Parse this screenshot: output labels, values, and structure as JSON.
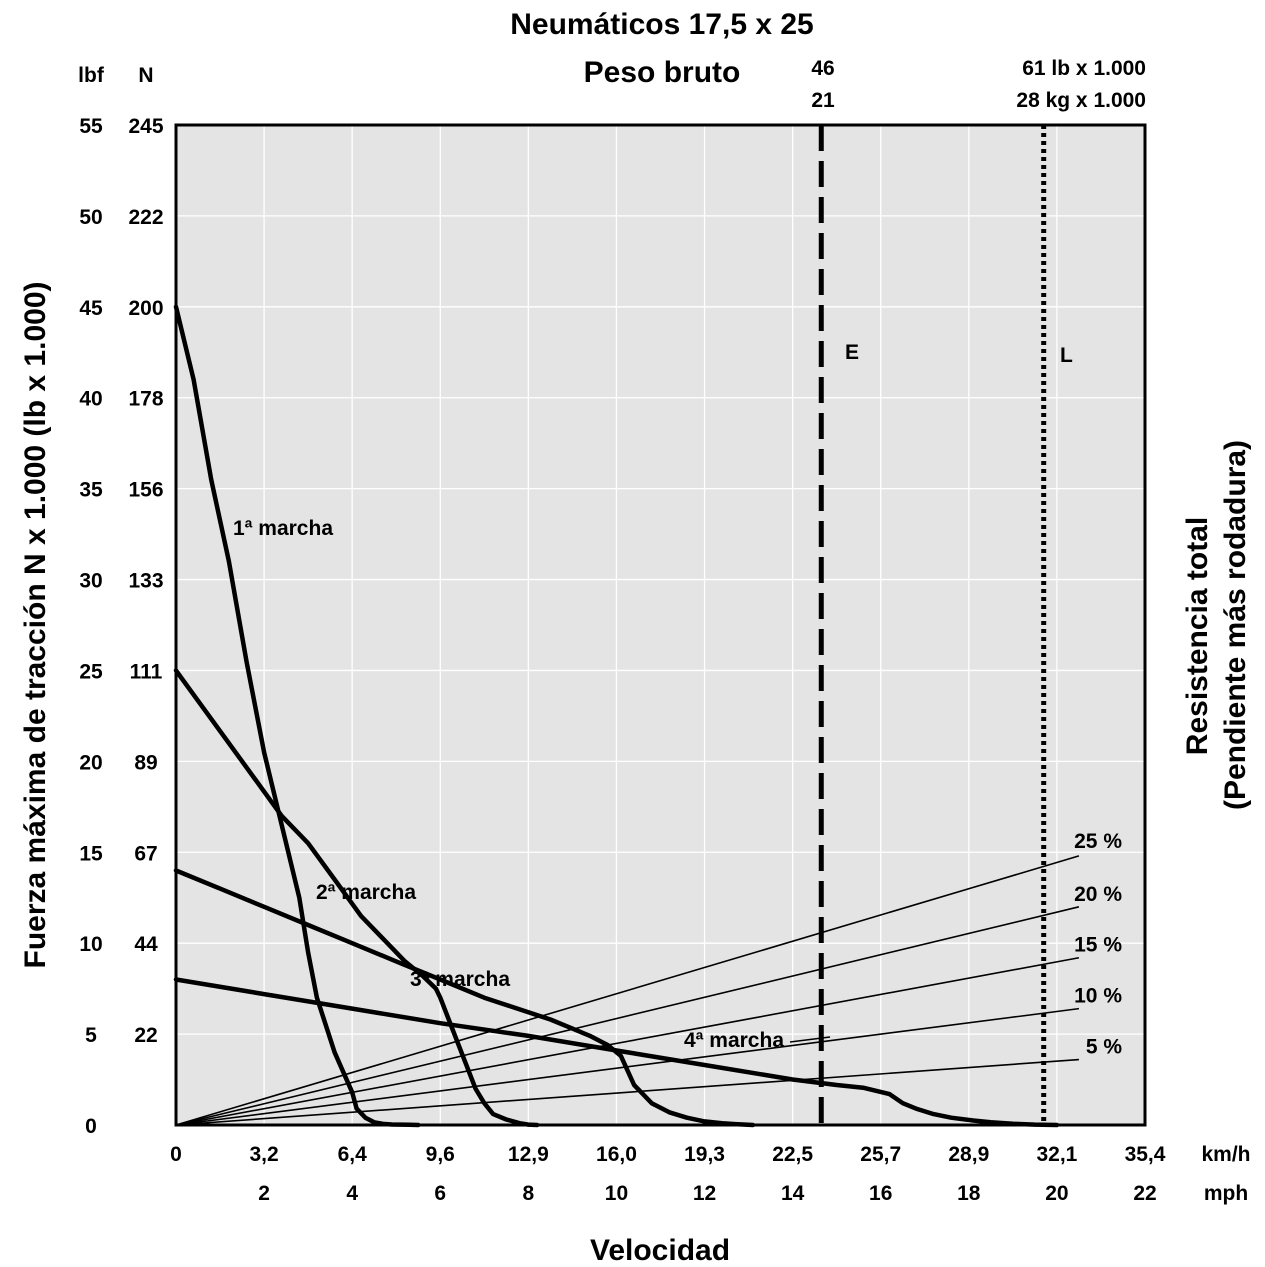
{
  "chart_data": {
    "type": "line",
    "title": "Neumáticos 17,5 x 25",
    "subtitle": "Peso bruto",
    "xlabel": "Velocidad",
    "ylabel_left": "Fuerza máxima de tracción  N x 1.000 (lb x 1.000)",
    "ylabel_right_1": "Resistencia total",
    "ylabel_right_2": "(Pendiente más rodadura)",
    "left_units": {
      "lbf": "lbf",
      "n": "N"
    },
    "x_units": {
      "kmh": "km/h",
      "mph": "mph"
    },
    "xlim_mph": [
      0,
      22
    ],
    "ylim_lbf": [
      0,
      55
    ],
    "grid": true,
    "x_ticks_kmh": [
      "0",
      "3,2",
      "6,4",
      "9,6",
      "12,9",
      "16,0",
      "19,3",
      "22,5",
      "25,7",
      "28,9",
      "32,1",
      "35,4"
    ],
    "x_ticks_mph": [
      "2",
      "4",
      "6",
      "8",
      "10",
      "12",
      "14",
      "16",
      "18",
      "20",
      "22"
    ],
    "y_ticks": [
      {
        "lbf": "0",
        "n": ""
      },
      {
        "lbf": "5",
        "n": "22"
      },
      {
        "lbf": "10",
        "n": "44"
      },
      {
        "lbf": "15",
        "n": "67"
      },
      {
        "lbf": "20",
        "n": "89"
      },
      {
        "lbf": "25",
        "n": "111"
      },
      {
        "lbf": "30",
        "n": "133"
      },
      {
        "lbf": "35",
        "n": "156"
      },
      {
        "lbf": "40",
        "n": "178"
      },
      {
        "lbf": "45",
        "n": "200"
      },
      {
        "lbf": "50",
        "n": "222"
      },
      {
        "lbf": "55",
        "n": "245"
      }
    ],
    "series": [
      {
        "name": "1ª marcha",
        "x": [
          0,
          0.4,
          0.8,
          1.2,
          1.6,
          2.0,
          2.4,
          2.8,
          3.0,
          3.2,
          3.6,
          4.0,
          4.1,
          4.3,
          4.5,
          4.7,
          4.9,
          5.3,
          5.5
        ],
        "y": [
          45,
          41,
          35.5,
          31,
          25.5,
          20.5,
          16.5,
          12.5,
          9.5,
          7,
          4,
          1.8,
          0.9,
          0.4,
          0.15,
          0.06,
          0.03,
          0.01,
          0
        ]
      },
      {
        "name": "2ª marcha",
        "x": [
          0,
          0.6,
          1.2,
          1.8,
          2.4,
          3.0,
          3.6,
          4.2,
          4.8,
          5.2,
          5.6,
          5.9,
          6.0,
          6.4,
          6.8,
          7.0,
          7.2,
          7.5,
          7.8,
          8.0,
          8.2
        ],
        "y": [
          25,
          23,
          21,
          19,
          17,
          15.5,
          13.5,
          11.5,
          10,
          9,
          8.2,
          7.5,
          7,
          4.5,
          2,
          1.2,
          0.6,
          0.3,
          0.1,
          0.02,
          0
        ]
      },
      {
        "name": "3ª marcha",
        "x": [
          0,
          1,
          2,
          3,
          4,
          5,
          6,
          7,
          8,
          8.5,
          9.0,
          9.4,
          9.8,
          10.1,
          10.4,
          10.8,
          11.2,
          11.6,
          12.0,
          12.4,
          12.7,
          13.1
        ],
        "y": [
          14,
          13,
          12,
          11,
          10,
          9,
          8,
          7,
          6.2,
          5.8,
          5.3,
          4.9,
          4.4,
          3.8,
          2.2,
          1.2,
          0.7,
          0.4,
          0.2,
          0.1,
          0.05,
          0
        ]
      },
      {
        "name": "4ª marcha",
        "x": [
          0,
          2,
          4,
          6,
          8,
          10,
          12,
          14,
          15,
          15.6,
          16.2,
          16.5,
          16.8,
          17.2,
          17.6,
          18.1,
          18.5,
          19.0,
          19.5,
          20.0
        ],
        "y": [
          8,
          7.2,
          6.4,
          5.6,
          4.9,
          4.1,
          3.3,
          2.5,
          2.2,
          2.05,
          1.7,
          1.2,
          0.9,
          0.6,
          0.4,
          0.25,
          0.15,
          0.07,
          0.02,
          0
        ]
      }
    ],
    "grade_lines": [
      {
        "label": "25 %",
        "end": {
          "x": 20.5,
          "y": 14.8
        }
      },
      {
        "label": "20 %",
        "end": {
          "x": 20.5,
          "y": 12.0
        }
      },
      {
        "label": "15 %",
        "end": {
          "x": 20.5,
          "y": 9.2
        }
      },
      {
        "label": "10 %",
        "end": {
          "x": 20.5,
          "y": 6.4
        }
      },
      {
        "label": "5 %",
        "end": {
          "x": 20.5,
          "y": 3.6
        }
      }
    ],
    "vertical_lines": [
      {
        "label": "E",
        "style": "dashed",
        "x": 14.65,
        "top_1": "46",
        "top_2": "21"
      },
      {
        "label": "L",
        "style": "dotted",
        "x": 19.7,
        "top_1": "61 lb x 1.000",
        "top_2": "28 kg x 1.000"
      }
    ]
  }
}
